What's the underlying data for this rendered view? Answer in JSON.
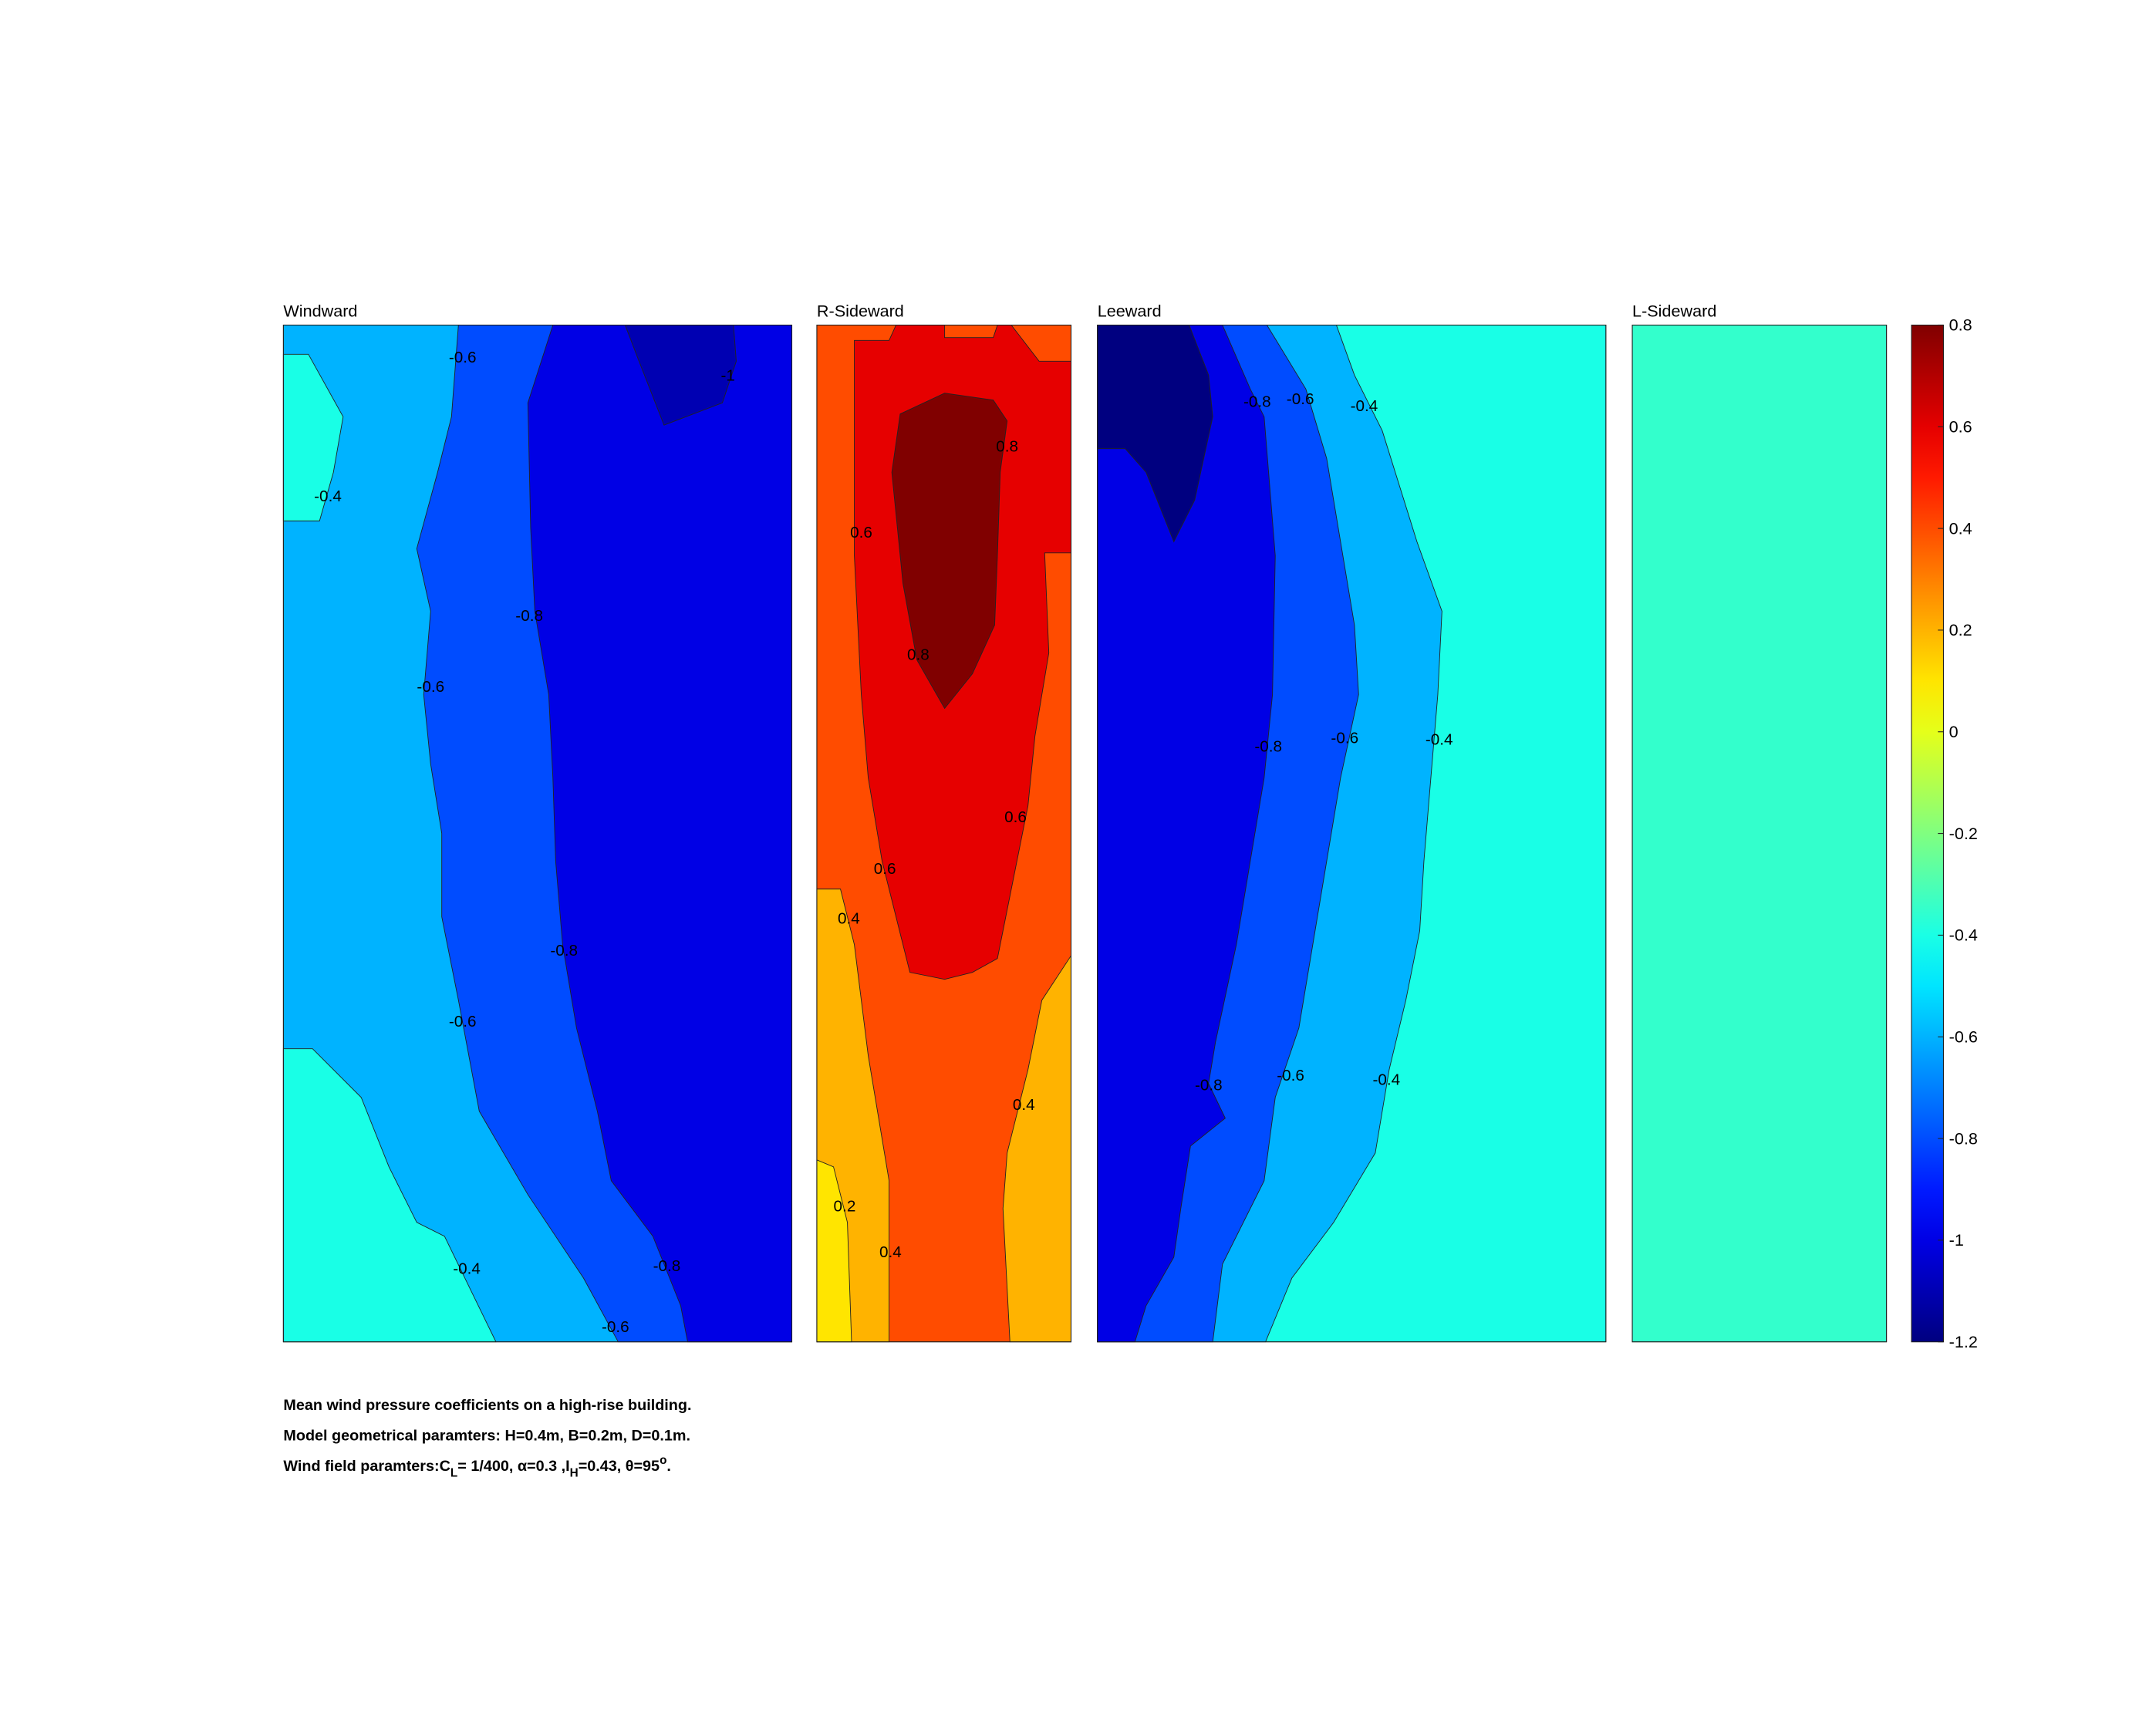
{
  "chart_data": {
    "type": "contour",
    "colormap": "jet",
    "clim": [
      -1.2,
      0.8
    ],
    "panels": [
      {
        "title": "Windward",
        "levels": [
          -0.6,
          -0.4,
          -0.4,
          -0.8,
          -1,
          -1.1
        ],
        "contour_labels": [
          -0.6,
          -0.4,
          -0.8,
          -0.6,
          -0.8,
          -0.6,
          -0.4,
          -0.8,
          -0.6,
          -1
        ]
      },
      {
        "title": "R-Sideward",
        "levels": [
          0.4,
          0.2,
          0.1,
          0.2,
          0.6,
          0.8
        ],
        "contour_labels": [
          0.8,
          0.6,
          0.8,
          0.6,
          0.6,
          0.4,
          0.4,
          0.2,
          0.4
        ]
      },
      {
        "title": "Leeward",
        "levels": [
          -0.4,
          -0.6,
          -0.8,
          -1,
          -1.2
        ],
        "contour_labels": [
          -0.8,
          -0.6,
          -0.4,
          -0.8,
          -0.6,
          -0.4,
          -0.8,
          -0.6,
          -0.4
        ]
      },
      {
        "title": "L-Sideward",
        "levels": [
          -0.35
        ],
        "contour_labels": []
      }
    ],
    "colorbar_ticks": [
      0.8,
      0.6,
      0.4,
      0.2,
      0,
      -0.2,
      -0.4,
      -0.6,
      -0.8,
      -1,
      -1.2
    ],
    "notes": [
      "Mean wind pressure coefficients on a high-rise building.",
      "Model geometrical paramters: H=0.4m, B=0.2m, D=0.1m."
    ],
    "note_parts": [
      "Wind field paramters:C",
      "L",
      "= 1/400, α=0.3 ,I",
      "H",
      "=0.43, θ=95",
      "o",
      "."
    ]
  }
}
